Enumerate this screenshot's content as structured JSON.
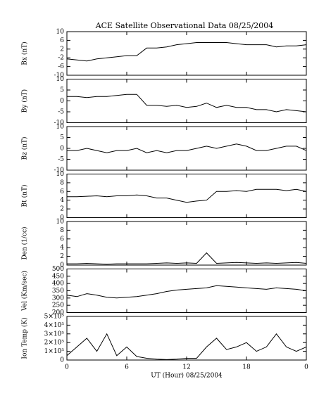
{
  "title": "ACE Satellite Observational Data   08/25/2004",
  "chart_data": [
    {
      "type": "line",
      "ylabel": "Bx (nT)",
      "color": "#000000",
      "x": [
        0,
        1,
        2,
        3,
        4,
        5,
        6,
        7,
        8,
        9,
        10,
        11,
        12,
        13,
        14,
        15,
        16,
        17,
        18,
        19,
        20,
        21,
        22,
        23,
        24
      ],
      "values": [
        -2.5,
        -3,
        -3.5,
        -2.5,
        -2,
        -1.5,
        -1,
        -1,
        2.5,
        2.5,
        3,
        4,
        4.5,
        5,
        5,
        5,
        5,
        4.5,
        4,
        4,
        4,
        3,
        3.5,
        3.5,
        4
      ],
      "xlim": [
        0,
        24
      ],
      "xticks": [
        0,
        6,
        12,
        18,
        {
          "value": 24,
          "label": "0"
        }
      ],
      "ylim": [
        -10,
        10
      ],
      "yticks": [
        -10,
        -6,
        -2,
        2,
        6,
        10
      ]
    },
    {
      "type": "line",
      "ylabel": "By (nT)",
      "color": "#000000",
      "x": [
        0,
        1,
        2,
        3,
        4,
        5,
        6,
        7,
        8,
        9,
        10,
        11,
        12,
        13,
        14,
        15,
        16,
        17,
        18,
        19,
        20,
        21,
        22,
        23,
        24
      ],
      "values": [
        2,
        2,
        1.5,
        2,
        2,
        2.5,
        3,
        3,
        -2,
        -2,
        -2.5,
        -2,
        -3,
        -2.5,
        -1,
        -3,
        -2,
        -3,
        -3,
        -4,
        -4,
        -5,
        -4,
        -4.5,
        -5
      ],
      "xlim": [
        0,
        24
      ],
      "xticks": [
        0,
        6,
        12,
        18,
        {
          "value": 24,
          "label": "0"
        }
      ],
      "ylim": [
        -10,
        10
      ],
      "yticks": [
        -10,
        -5,
        0,
        5,
        10
      ]
    },
    {
      "type": "line",
      "ylabel": "Bz (nT)",
      "color": "#000000",
      "x": [
        0,
        1,
        2,
        3,
        4,
        5,
        6,
        7,
        8,
        9,
        10,
        11,
        12,
        13,
        14,
        15,
        16,
        17,
        18,
        19,
        20,
        21,
        22,
        23,
        24
      ],
      "values": [
        -1,
        -1,
        0,
        -1,
        -2,
        -1,
        -1,
        0,
        -2,
        -1,
        -2,
        -1,
        -1,
        0,
        1,
        0,
        1,
        2,
        1,
        -1,
        -1,
        0,
        1,
        1,
        -1
      ],
      "xlim": [
        0,
        24
      ],
      "xticks": [
        0,
        6,
        12,
        18,
        {
          "value": 24,
          "label": "0"
        }
      ],
      "ylim": [
        -10,
        10
      ],
      "yticks": [
        -10,
        -5,
        0,
        5,
        10
      ]
    },
    {
      "type": "line",
      "ylabel": "Bt (nT)",
      "color": "#000000",
      "x": [
        0,
        1,
        2,
        3,
        4,
        5,
        6,
        7,
        8,
        9,
        10,
        11,
        12,
        13,
        14,
        15,
        16,
        17,
        18,
        19,
        20,
        21,
        22,
        23,
        24
      ],
      "values": [
        4.8,
        4.8,
        4.9,
        5,
        4.8,
        5,
        5,
        5.2,
        5,
        4.5,
        4.5,
        4,
        3.5,
        3.8,
        4,
        6,
        6,
        6.2,
        6,
        6.5,
        6.5,
        6.5,
        6.2,
        6.5,
        6
      ],
      "xlim": [
        0,
        24
      ],
      "xticks": [
        0,
        6,
        12,
        18,
        {
          "value": 24,
          "label": "0"
        }
      ],
      "ylim": [
        0,
        10
      ],
      "yticks": [
        0,
        2,
        4,
        6,
        8,
        10
      ]
    },
    {
      "type": "line",
      "ylabel": "Den (1/cc)",
      "color": "#000000",
      "x": [
        0,
        1,
        2,
        3,
        4,
        5,
        6,
        7,
        8,
        9,
        10,
        11,
        12,
        13,
        14,
        15,
        16,
        17,
        18,
        19,
        20,
        21,
        22,
        23,
        24
      ],
      "values": [
        0.3,
        0.3,
        0.4,
        0.3,
        0.2,
        0.3,
        0.3,
        0.3,
        0.3,
        0.4,
        0.5,
        0.4,
        0.5,
        0.4,
        2.8,
        0.4,
        0.5,
        0.6,
        0.5,
        0.4,
        0.5,
        0.4,
        0.5,
        0.6,
        0.4
      ],
      "xlim": [
        0,
        24
      ],
      "xticks": [
        0,
        6,
        12,
        18,
        {
          "value": 24,
          "label": "0"
        }
      ],
      "ylim": [
        0,
        10
      ],
      "yticks": [
        0,
        2,
        4,
        6,
        8,
        10
      ]
    },
    {
      "type": "line",
      "ylabel": "Vel (Km/sec)",
      "color": "#000000",
      "x": [
        0,
        1,
        2,
        3,
        4,
        5,
        6,
        7,
        8,
        9,
        10,
        11,
        12,
        13,
        14,
        15,
        16,
        17,
        18,
        19,
        20,
        21,
        22,
        23,
        24
      ],
      "values": [
        320,
        310,
        330,
        320,
        305,
        300,
        305,
        310,
        320,
        330,
        345,
        355,
        360,
        365,
        370,
        385,
        380,
        375,
        370,
        365,
        360,
        370,
        365,
        360,
        350
      ],
      "xlim": [
        0,
        24
      ],
      "xticks": [
        0,
        6,
        12,
        18,
        {
          "value": 24,
          "label": "0"
        }
      ],
      "ylim": [
        200,
        500
      ],
      "yticks": [
        200,
        250,
        300,
        350,
        400,
        450,
        500
      ]
    },
    {
      "type": "line",
      "ylabel": "Ion Temp (K)",
      "xlabel": "UT (Hour)  08/25/2004",
      "color": "#000000",
      "x": [
        0,
        1,
        2,
        3,
        4,
        5,
        6,
        7,
        8,
        9,
        10,
        11,
        12,
        13,
        14,
        15,
        16,
        17,
        18,
        19,
        20,
        21,
        22,
        23,
        24
      ],
      "values": [
        50000,
        150000,
        250000,
        100000,
        300000,
        50000,
        150000,
        40000,
        20000,
        10000,
        5000,
        10000,
        20000,
        20000,
        150000,
        250000,
        120000,
        150000,
        200000,
        100000,
        150000,
        300000,
        150000,
        100000,
        150000
      ],
      "xlim": [
        0,
        24
      ],
      "xticks": [
        0,
        6,
        12,
        18,
        {
          "value": 24,
          "label": "0"
        }
      ],
      "ylim": [
        0,
        500000
      ],
      "yticks": [
        0,
        {
          "value": 100000,
          "label": "1×10⁵"
        },
        {
          "value": 200000,
          "label": "2×10⁵"
        },
        {
          "value": 300000,
          "label": "3×10⁵"
        },
        {
          "value": 400000,
          "label": "4×10⁵"
        },
        {
          "value": 500000,
          "label": "5×10⁵"
        }
      ]
    }
  ]
}
